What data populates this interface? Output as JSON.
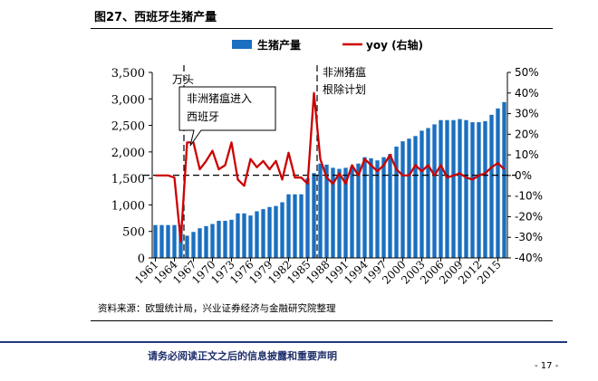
{
  "figure": {
    "title": "图27、西班牙生猪产量",
    "source": "资料来源：欧盟统计局，兴业证券经济与金融研究院整理"
  },
  "footer": {
    "disclaimer": "请务必阅读正文之后的信息披露和重要声明",
    "page": "- 17 -"
  },
  "chart_data": {
    "type": "bar+line",
    "title": "",
    "x_tick_labels": [
      "1961",
      "1964",
      "1967",
      "1970",
      "1973",
      "1976",
      "1979",
      "1982",
      "1985",
      "1988",
      "1991",
      "1994",
      "1997",
      "2000",
      "2003",
      "2006",
      "2009",
      "2012",
      "2015"
    ],
    "years": [
      1961,
      1962,
      1963,
      1964,
      1965,
      1966,
      1967,
      1968,
      1969,
      1970,
      1971,
      1972,
      1973,
      1974,
      1975,
      1976,
      1977,
      1978,
      1979,
      1980,
      1981,
      1982,
      1983,
      1984,
      1985,
      1986,
      1987,
      1988,
      1989,
      1990,
      1991,
      1992,
      1993,
      1994,
      1995,
      1996,
      1997,
      1998,
      1999,
      2000,
      2001,
      2002,
      2003,
      2004,
      2005,
      2006,
      2007,
      2008,
      2009,
      2010,
      2011,
      2012,
      2013,
      2014,
      2015,
      2016
    ],
    "series": [
      {
        "name": "生猪产量",
        "axis": "left",
        "type": "bar",
        "color": "#1a6fc0",
        "values": [
          620,
          620,
          620,
          620,
          620,
          420,
          490,
          560,
          600,
          640,
          700,
          700,
          720,
          840,
          840,
          800,
          880,
          920,
          960,
          980,
          1050,
          1200,
          1200,
          1200,
          1500,
          1600,
          1780,
          1760,
          1700,
          1680,
          1700,
          1720,
          1780,
          1900,
          1880,
          1840,
          1900,
          1960,
          2100,
          2200,
          2250,
          2300,
          2400,
          2450,
          2520,
          2600,
          2600,
          2600,
          2620,
          2600,
          2560,
          2560,
          2580,
          2700,
          2820,
          2940
        ]
      },
      {
        "name": "yoy (右轴)",
        "axis": "right",
        "type": "line",
        "color": "#cc0000",
        "values": [
          0,
          0,
          0,
          -1,
          -32,
          16,
          16,
          3,
          7,
          12,
          3,
          5,
          16,
          -2,
          -5,
          8,
          4,
          7,
          3,
          7,
          -2,
          11,
          -1,
          -1,
          -4,
          40,
          8,
          -1,
          -4,
          1,
          -4,
          5,
          0,
          8,
          5,
          2,
          5,
          10,
          3,
          0,
          0,
          5,
          2,
          5,
          0,
          5,
          -1,
          0,
          1,
          -1,
          -2,
          0,
          1,
          4,
          6,
          3
        ]
      }
    ],
    "y_left": {
      "min": 0,
      "max": 3500,
      "ticks": [
        "0",
        "500",
        "1,000",
        "1,500",
        "2,000",
        "2,500",
        "3,000",
        "3,500"
      ]
    },
    "y_right": {
      "min": -40,
      "max": 50,
      "ticks": [
        "-40%",
        "-30%",
        "-20%",
        "-10%",
        "0%",
        "10%",
        "20%",
        "30%",
        "40%",
        "50%"
      ]
    },
    "reference_line": {
      "axis": "left",
      "value": 1560
    },
    "vertical_markers": [
      1965.5,
      1986.5
    ],
    "annotations": {
      "left_unit": "万头",
      "callout": [
        "非洲猪瘟进入",
        "西班牙"
      ],
      "right_note": [
        "非洲猪瘟",
        "根除计划"
      ]
    },
    "legend": {
      "placement": "top",
      "bar_label": "生猪产量",
      "line_label": "yoy (右轴)"
    }
  }
}
